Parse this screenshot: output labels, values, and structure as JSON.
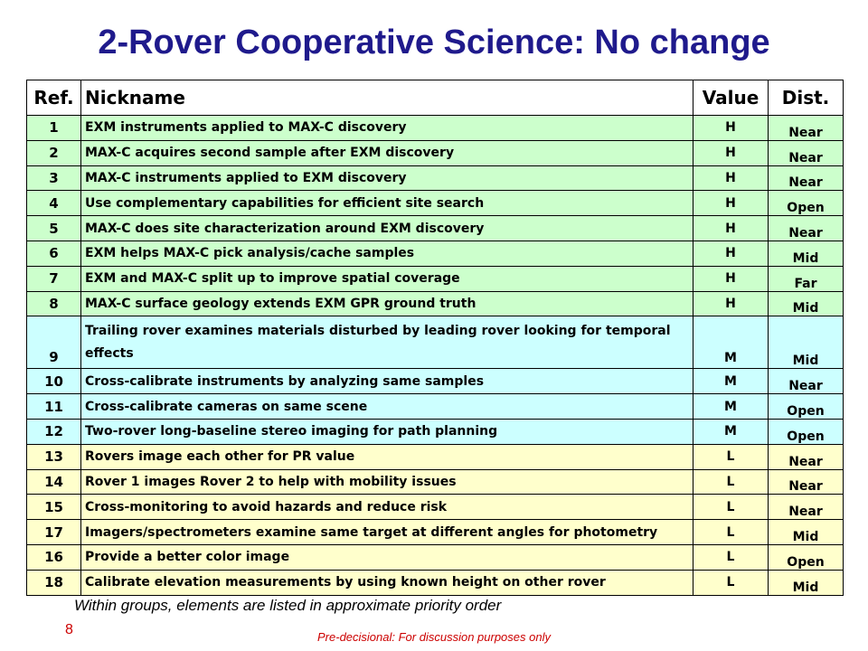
{
  "title": "2-Rover Cooperative Science:  No change",
  "table": {
    "headers": {
      "ref": "Ref.",
      "name": "Nickname",
      "value": "Value",
      "dist": "Dist."
    },
    "rows": [
      {
        "ref": "1",
        "name": "EXM instruments applied to MAX-C discovery",
        "value": "H",
        "dist": "Near",
        "group": "H"
      },
      {
        "ref": "2",
        "name": "MAX-C acquires second sample after EXM discovery",
        "value": "H",
        "dist": "Near",
        "group": "H"
      },
      {
        "ref": "3",
        "name": "MAX-C instruments applied to EXM discovery",
        "value": "H",
        "dist": "Near",
        "group": "H"
      },
      {
        "ref": "4",
        "name": "Use complementary capabilities for efficient site search",
        "value": "H",
        "dist": "Open",
        "group": "H"
      },
      {
        "ref": "5",
        "name": "MAX-C does site characterization around EXM discovery",
        "value": "H",
        "dist": "Near",
        "group": "H"
      },
      {
        "ref": "6",
        "name": "EXM helps MAX-C pick analysis/cache samples",
        "value": "H",
        "dist": "Mid",
        "group": "H"
      },
      {
        "ref": "7",
        "name": "EXM and MAX-C split up to improve spatial coverage",
        "value": "H",
        "dist": "Far",
        "group": "H"
      },
      {
        "ref": "8",
        "name": "MAX-C surface geology extends EXM GPR ground truth",
        "value": "H",
        "dist": "Mid",
        "group": "H"
      },
      {
        "ref": "9",
        "name": "Trailing rover examines materials disturbed by leading rover looking for temporal effects",
        "value": "M",
        "dist": "Mid",
        "group": "M"
      },
      {
        "ref": "10",
        "name": "Cross-calibrate instruments by analyzing same samples",
        "value": "M",
        "dist": "Near",
        "group": "M"
      },
      {
        "ref": "11",
        "name": "Cross-calibrate cameras on same scene",
        "value": "M",
        "dist": "Open",
        "group": "M"
      },
      {
        "ref": "12",
        "name": "Two-rover long-baseline stereo imaging for path planning",
        "value": "M",
        "dist": "Open",
        "group": "M"
      },
      {
        "ref": "13",
        "name": "Rovers image each other for PR value",
        "value": "L",
        "dist": "Near",
        "group": "L"
      },
      {
        "ref": "14",
        "name": "Rover 1 images Rover 2 to help with mobility issues",
        "value": "L",
        "dist": "Near",
        "group": "L"
      },
      {
        "ref": "15",
        "name": "Cross-monitoring to avoid hazards and reduce risk",
        "value": "L",
        "dist": "Near",
        "group": "L"
      },
      {
        "ref": "17",
        "name": "Imagers/spectrometers examine same target at different angles for photometry",
        "value": "L",
        "dist": "Mid",
        "group": "L"
      },
      {
        "ref": "16",
        "name": "Provide a better color image",
        "value": "L",
        "dist": "Open",
        "group": "L"
      },
      {
        "ref": "18",
        "name": "Calibrate elevation measurements by using known height on other rover",
        "value": "L",
        "dist": "Mid",
        "group": "L"
      }
    ]
  },
  "colors": {
    "title": "#1f1a8c",
    "high_group": "#ccffcc",
    "medium_group": "#ccffff",
    "low_group": "#ffffcc",
    "footer_text": "#cc0000"
  },
  "footnote": "Within groups, elements are listed in approximate priority order",
  "page_number": "8",
  "disclaimer": "Pre-decisional:  For discussion purposes only"
}
